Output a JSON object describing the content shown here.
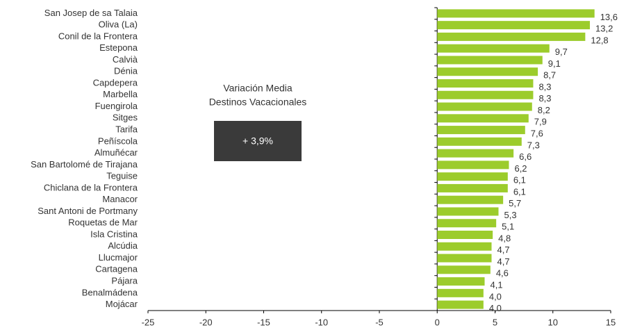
{
  "chart_data": {
    "type": "barh",
    "annotation": {
      "title_lines": [
        "Variación Media",
        "Destinos Vacacionales"
      ],
      "value": "+ 3,9%"
    },
    "categories": [
      "San Josep de sa Talaia",
      "Oliva (La)",
      "Conil de la Frontera",
      "Estepona",
      "Calvià",
      "Dénia",
      "Capdepera",
      "Marbella",
      "Fuengirola",
      "Sitges",
      "Tarifa",
      "Peñíscola",
      "Almuñécar",
      "San Bartolomé de Tirajana",
      "Teguise",
      "Chiclana de la Frontera",
      "Manacor",
      "Sant Antoni de Portmany",
      "Roquetas de Mar",
      "Isla Cristina",
      "Alcúdia",
      "Llucmajor",
      "Cartagena",
      "Pájara",
      "Benalmádena",
      "Mojácar"
    ],
    "values": [
      13.6,
      13.2,
      12.8,
      9.7,
      9.1,
      8.7,
      8.3,
      8.3,
      8.2,
      7.9,
      7.6,
      7.3,
      6.6,
      6.2,
      6.1,
      6.1,
      5.7,
      5.3,
      5.1,
      4.8,
      4.7,
      4.7,
      4.6,
      4.1,
      4.0,
      4.0
    ],
    "value_labels": [
      "13,6",
      "13,2",
      "12,8",
      "9,7",
      "9,1",
      "8,7",
      "8,3",
      "8,3",
      "8,2",
      "7,9",
      "7,6",
      "7,3",
      "6,6",
      "6,2",
      "6,1",
      "6,1",
      "5,7",
      "5,3",
      "5,1",
      "4,8",
      "4,7",
      "4,7",
      "4,6",
      "4,1",
      "4,0",
      "4,0"
    ],
    "color": "#9ccc2c",
    "xlim": [
      -25,
      15
    ],
    "xticks": [
      -25,
      -20,
      -15,
      -10,
      -5,
      0,
      5,
      10,
      15
    ]
  }
}
